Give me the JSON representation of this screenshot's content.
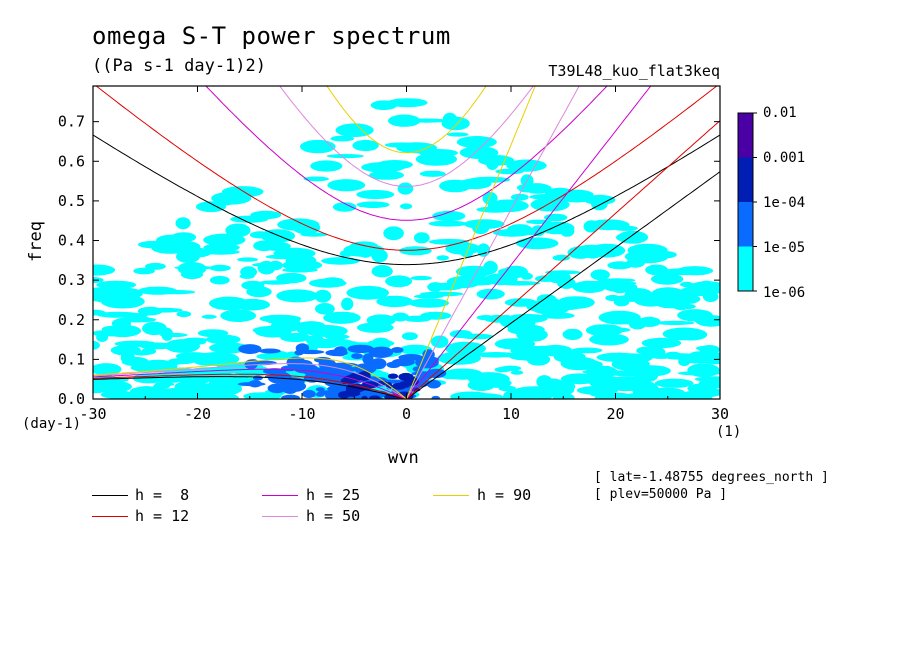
{
  "title": "omega S-T power spectrum",
  "subtitle": "((Pa s-1 day-1)2)",
  "run_name": "T39L48_kuo_flat3keq",
  "info_lines": [
    "[ lat=-1.48755 degrees_north ]",
    "[ plev=50000 Pa ]"
  ],
  "colors": {
    "h8": "#000000",
    "h12": "#e00000",
    "h25": "#cc00cc",
    "h50": "#dd88dd",
    "h90": "#e8d000",
    "level1": "#00ffff",
    "level2": "#0a6cff",
    "level3": "#001eb4",
    "level4": "#4b00a6"
  },
  "chart_data": {
    "type": "heatmap",
    "title": "omega S-T power spectrum",
    "units": "((Pa s-1 day-1)2)",
    "xlabel": "wvn",
    "ylabel": "freq",
    "x_unit": "(1)",
    "y_unit": "(day-1)",
    "xlim": [
      -30,
      30
    ],
    "ylim": [
      0.0,
      0.79
    ],
    "x_ticks": [
      "-30",
      "-20",
      "-10",
      "0",
      "10",
      "20",
      "30"
    ],
    "y_ticks": [
      "0.0",
      "0.1",
      "0.2",
      "0.3",
      "0.4",
      "0.5",
      "0.6",
      "0.7"
    ],
    "colorbar": {
      "levels": [
        "0.01",
        "0.001",
        "1e-04",
        "1e-05",
        "1e-06"
      ],
      "colors": [
        "#4b00a6",
        "#001eb4",
        "#0a6cff",
        "#00ffff"
      ]
    },
    "dispersion_curves": [
      {
        "label": "h =  8",
        "h": 8
      },
      {
        "label": "h = 12",
        "h": 12
      },
      {
        "label": "h = 25",
        "h": 25
      },
      {
        "label": "h = 50",
        "h": 50
      },
      {
        "label": "h = 90",
        "h": 90
      }
    ],
    "legend_position": "bottom"
  }
}
